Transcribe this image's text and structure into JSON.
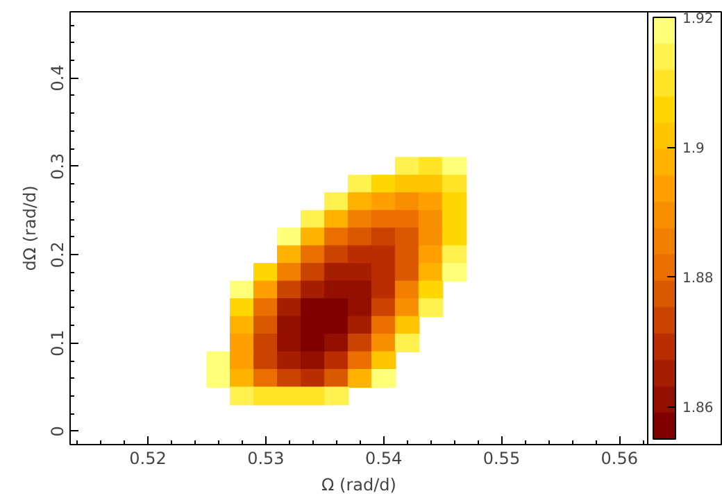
{
  "chart_data": {
    "type": "scatter",
    "marker": "square",
    "xlabel": "Ω (rad/d)",
    "ylabel": "dΩ (rad/d)",
    "series": [
      {
        "x": [
          0.542,
          0.544,
          0.546
        ],
        "values": [
          0.3,
          0.3,
          0.3
        ],
        "cvalues": [
          1.913,
          1.911,
          1.916
        ],
        "colors": [
          "#fff250",
          "#ffe428",
          "#ffff78"
        ]
      },
      {
        "x": [
          0.538,
          0.54,
          0.542,
          0.544,
          0.546
        ],
        "values": [
          0.28,
          0.28,
          0.28,
          0.28,
          0.28
        ],
        "cvalues": [
          1.915,
          1.905,
          1.9,
          1.902,
          1.91
        ],
        "colors": [
          "#fff250",
          "#ffd700",
          "#ffc500",
          "#ffc500",
          "#ffe428"
        ]
      },
      {
        "x": [
          0.536,
          0.538,
          0.54,
          0.542,
          0.544,
          0.546
        ],
        "values": [
          0.26,
          0.26,
          0.26,
          0.26,
          0.26,
          0.26
        ],
        "cvalues": [
          1.912,
          1.899,
          1.892,
          1.89,
          1.895,
          1.906
        ],
        "colors": [
          "#fff250",
          "#ffb200",
          "#ffa000",
          "#f88f00",
          "#ffa000",
          "#ffd700"
        ]
      },
      {
        "x": [
          0.534,
          0.536,
          0.538,
          0.54,
          0.542,
          0.544,
          0.546
        ],
        "values": [
          0.24,
          0.24,
          0.24,
          0.24,
          0.24,
          0.24,
          0.24
        ],
        "cvalues": [
          1.913,
          1.897,
          1.886,
          1.882,
          1.883,
          1.891,
          1.905
        ],
        "colors": [
          "#fff250",
          "#ffb200",
          "#f27f00",
          "#eb6e00",
          "#eb6e00",
          "#f88f00",
          "#ffd700"
        ]
      },
      {
        "x": [
          0.532,
          0.534,
          0.536,
          0.538,
          0.54,
          0.542,
          0.544,
          0.546
        ],
        "values": [
          0.22,
          0.22,
          0.22,
          0.22,
          0.22,
          0.22,
          0.22,
          0.22
        ],
        "cvalues": [
          1.916,
          1.897,
          1.883,
          1.876,
          1.875,
          1.879,
          1.89,
          1.907
        ],
        "colors": [
          "#ffff78",
          "#ffb200",
          "#eb6e00",
          "#da5800",
          "#ca4300",
          "#da5800",
          "#f88f00",
          "#ffd700"
        ]
      },
      {
        "x": [
          0.532,
          0.534,
          0.536,
          0.538,
          0.54,
          0.542,
          0.544,
          0.546
        ],
        "values": [
          0.2,
          0.2,
          0.2,
          0.2,
          0.2,
          0.2,
          0.2,
          0.2
        ],
        "cvalues": [
          1.899,
          1.883,
          1.873,
          1.868,
          1.87,
          1.878,
          1.892,
          1.912
        ],
        "colors": [
          "#ffb200",
          "#eb6e00",
          "#ca4300",
          "#b92d00",
          "#b92d00",
          "#da5800",
          "#ffa000",
          "#fff250"
        ]
      },
      {
        "x": [
          0.53,
          0.532,
          0.534,
          0.536,
          0.538,
          0.54,
          0.542,
          0.544,
          0.546
        ],
        "values": [
          0.18,
          0.18,
          0.18,
          0.18,
          0.18,
          0.18,
          0.18,
          0.18,
          0.18
        ],
        "cvalues": [
          1.905,
          1.885,
          1.872,
          1.865,
          1.864,
          1.869,
          1.879,
          1.897,
          1.919
        ],
        "colors": [
          "#ffd700",
          "#f27f00",
          "#ca4300",
          "#a61e00",
          "#a61e00",
          "#b92d00",
          "#da5800",
          "#ffb200",
          "#ffff78"
        ]
      },
      {
        "x": [
          0.528,
          0.53,
          0.532,
          0.534,
          0.536,
          0.538,
          0.54,
          0.542,
          0.544
        ],
        "values": [
          0.16,
          0.16,
          0.16,
          0.16,
          0.16,
          0.16,
          0.16,
          0.16,
          0.16
        ],
        "cvalues": [
          1.916,
          1.892,
          1.875,
          1.864,
          1.86,
          1.862,
          1.87,
          1.884,
          1.904
        ],
        "colors": [
          "#ffff78",
          "#ffa000",
          "#ca4300",
          "#a61e00",
          "#930f00",
          "#930f00",
          "#b92d00",
          "#f27f00",
          "#ffd700"
        ]
      },
      {
        "x": [
          0.528,
          0.53,
          0.532,
          0.534,
          0.536,
          0.538,
          0.54,
          0.542,
          0.544
        ],
        "values": [
          0.14,
          0.14,
          0.14,
          0.14,
          0.14,
          0.14,
          0.14,
          0.14,
          0.14
        ],
        "cvalues": [
          1.905,
          1.882,
          1.867,
          1.859,
          1.858,
          1.863,
          1.874,
          1.891,
          1.913
        ],
        "colors": [
          "#ffd700",
          "#eb6e00",
          "#a61e00",
          "#800000",
          "#800000",
          "#930f00",
          "#ca4300",
          "#f88f00",
          "#fff250"
        ]
      },
      {
        "x": [
          0.528,
          0.53,
          0.532,
          0.534,
          0.536,
          0.538,
          0.54,
          0.542
        ],
        "values": [
          0.12,
          0.12,
          0.12,
          0.12,
          0.12,
          0.12,
          0.12,
          0.12
        ],
        "cvalues": [
          1.897,
          1.876,
          1.862,
          1.857,
          1.859,
          1.867,
          1.882,
          1.902
        ],
        "colors": [
          "#ffb200",
          "#da5800",
          "#930f00",
          "#800000",
          "#800000",
          "#a61e00",
          "#eb6e00",
          "#ffc500"
        ]
      },
      {
        "x": [
          0.528,
          0.53,
          0.532,
          0.534,
          0.536,
          0.538,
          0.54,
          0.542
        ],
        "values": [
          0.1,
          0.1,
          0.1,
          0.1,
          0.1,
          0.1,
          0.1,
          0.1
        ],
        "cvalues": [
          1.893,
          1.873,
          1.862,
          1.858,
          1.862,
          1.873,
          1.891,
          1.913
        ],
        "colors": [
          "#ffa000",
          "#ca4300",
          "#930f00",
          "#800000",
          "#930f00",
          "#ca4300",
          "#f88f00",
          "#fff250"
        ]
      },
      {
        "x": [
          0.526,
          0.528,
          0.53,
          0.532,
          0.534,
          0.536,
          0.538,
          0.54
        ],
        "values": [
          0.08,
          0.08,
          0.08,
          0.08,
          0.08,
          0.08,
          0.08,
          0.08
        ],
        "cvalues": [
          1.919,
          1.893,
          1.875,
          1.865,
          1.863,
          1.87,
          1.883,
          1.902
        ],
        "colors": [
          "#ffff78",
          "#ffa000",
          "#ca4300",
          "#a61e00",
          "#930f00",
          "#b92d00",
          "#eb6e00",
          "#ffc500"
        ]
      },
      {
        "x": [
          0.526,
          0.528,
          0.53,
          0.532,
          0.534,
          0.536,
          0.538,
          0.54
        ],
        "values": [
          0.06,
          0.06,
          0.06,
          0.06,
          0.06,
          0.06,
          0.06,
          0.06
        ],
        "cvalues": [
          1.918,
          1.897,
          1.88,
          1.872,
          1.871,
          1.879,
          1.896,
          1.919
        ],
        "colors": [
          "#ffff78",
          "#ffb200",
          "#eb6e00",
          "#ca4300",
          "#b92d00",
          "#da5800",
          "#ffb200",
          "#ffff78"
        ]
      },
      {
        "x": [
          0.528,
          0.53,
          0.532,
          0.534,
          0.536
        ],
        "values": [
          0.04,
          0.04,
          0.04,
          0.04,
          0.04
        ],
        "cvalues": [
          1.915,
          1.91,
          1.908,
          1.91,
          1.915
        ],
        "colors": [
          "#fff250",
          "#ffe428",
          "#ffe428",
          "#ffe428",
          "#fff250"
        ]
      }
    ],
    "clim": [
      1.855,
      1.92
    ],
    "cticks": [
      1.86,
      1.88,
      1.9,
      1.92
    ],
    "xlim": [
      0.5134,
      0.5624
    ],
    "ylim": [
      -0.015,
      0.475
    ],
    "xticks": [
      0.52,
      0.53,
      0.54,
      0.55,
      0.56
    ],
    "yticks": [
      0,
      0.1,
      0.2,
      0.3,
      0.4
    ]
  }
}
